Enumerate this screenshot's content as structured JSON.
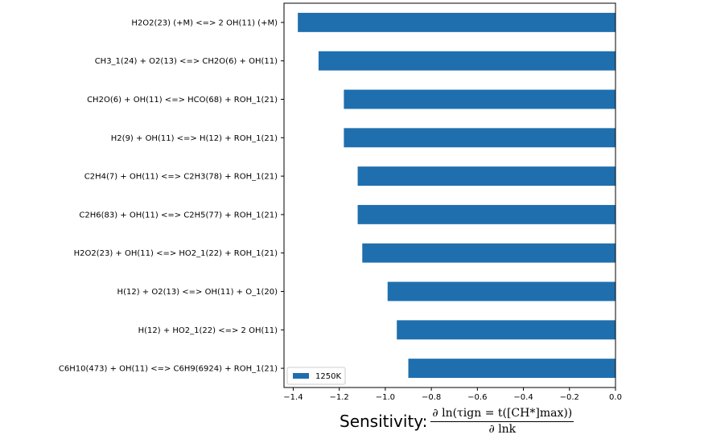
{
  "chart_data": {
    "type": "bar",
    "orientation": "horizontal",
    "categories": [
      "H2O2(23) (+M) <=> 2 OH(11) (+M)",
      "CH3_1(24) + O2(13) <=> CH2O(6) + OH(11)",
      "CH2O(6) + OH(11) <=> HCO(68) + ROH_1(21)",
      "H2(9) + OH(11) <=> H(12) + ROH_1(21)",
      "C2H4(7) + OH(11) <=> C2H3(78) + ROH_1(21)",
      "C2H6(83) + OH(11) <=> C2H5(77) + ROH_1(21)",
      "H2O2(23) + OH(11) <=> HO2_1(22) + ROH_1(21)",
      "H(12) + O2(13) <=> OH(11) + O_1(20)",
      "H(12) + HO2_1(22) <=> 2 OH(11)",
      "C6H10(473) + OH(11) <=> C6H9(6924) + ROH_1(21)"
    ],
    "series": [
      {
        "name": "1250K",
        "values": [
          -1.38,
          -1.29,
          -1.18,
          -1.18,
          -1.12,
          -1.12,
          -1.1,
          -0.99,
          -0.95,
          -0.9
        ],
        "color": "#1f6fae"
      }
    ],
    "xlim": [
      -1.44,
      0.0
    ],
    "xticks": [
      -1.4,
      -1.2,
      -1.0,
      -0.8,
      -0.6,
      -0.4,
      -0.2,
      0.0
    ],
    "xtick_labels": [
      "−1.4",
      "−1.2",
      "−1.0",
      "−0.8",
      "−0.6",
      "−0.4",
      "−0.2",
      "0.0"
    ],
    "xlabel_text": "Sensitivity:",
    "xlabel_math_numerator": "∂ ln(τign = t([CH*]max))",
    "xlabel_math_denominator": "∂ lnk",
    "legend_position": "lower-left",
    "grid": false
  }
}
